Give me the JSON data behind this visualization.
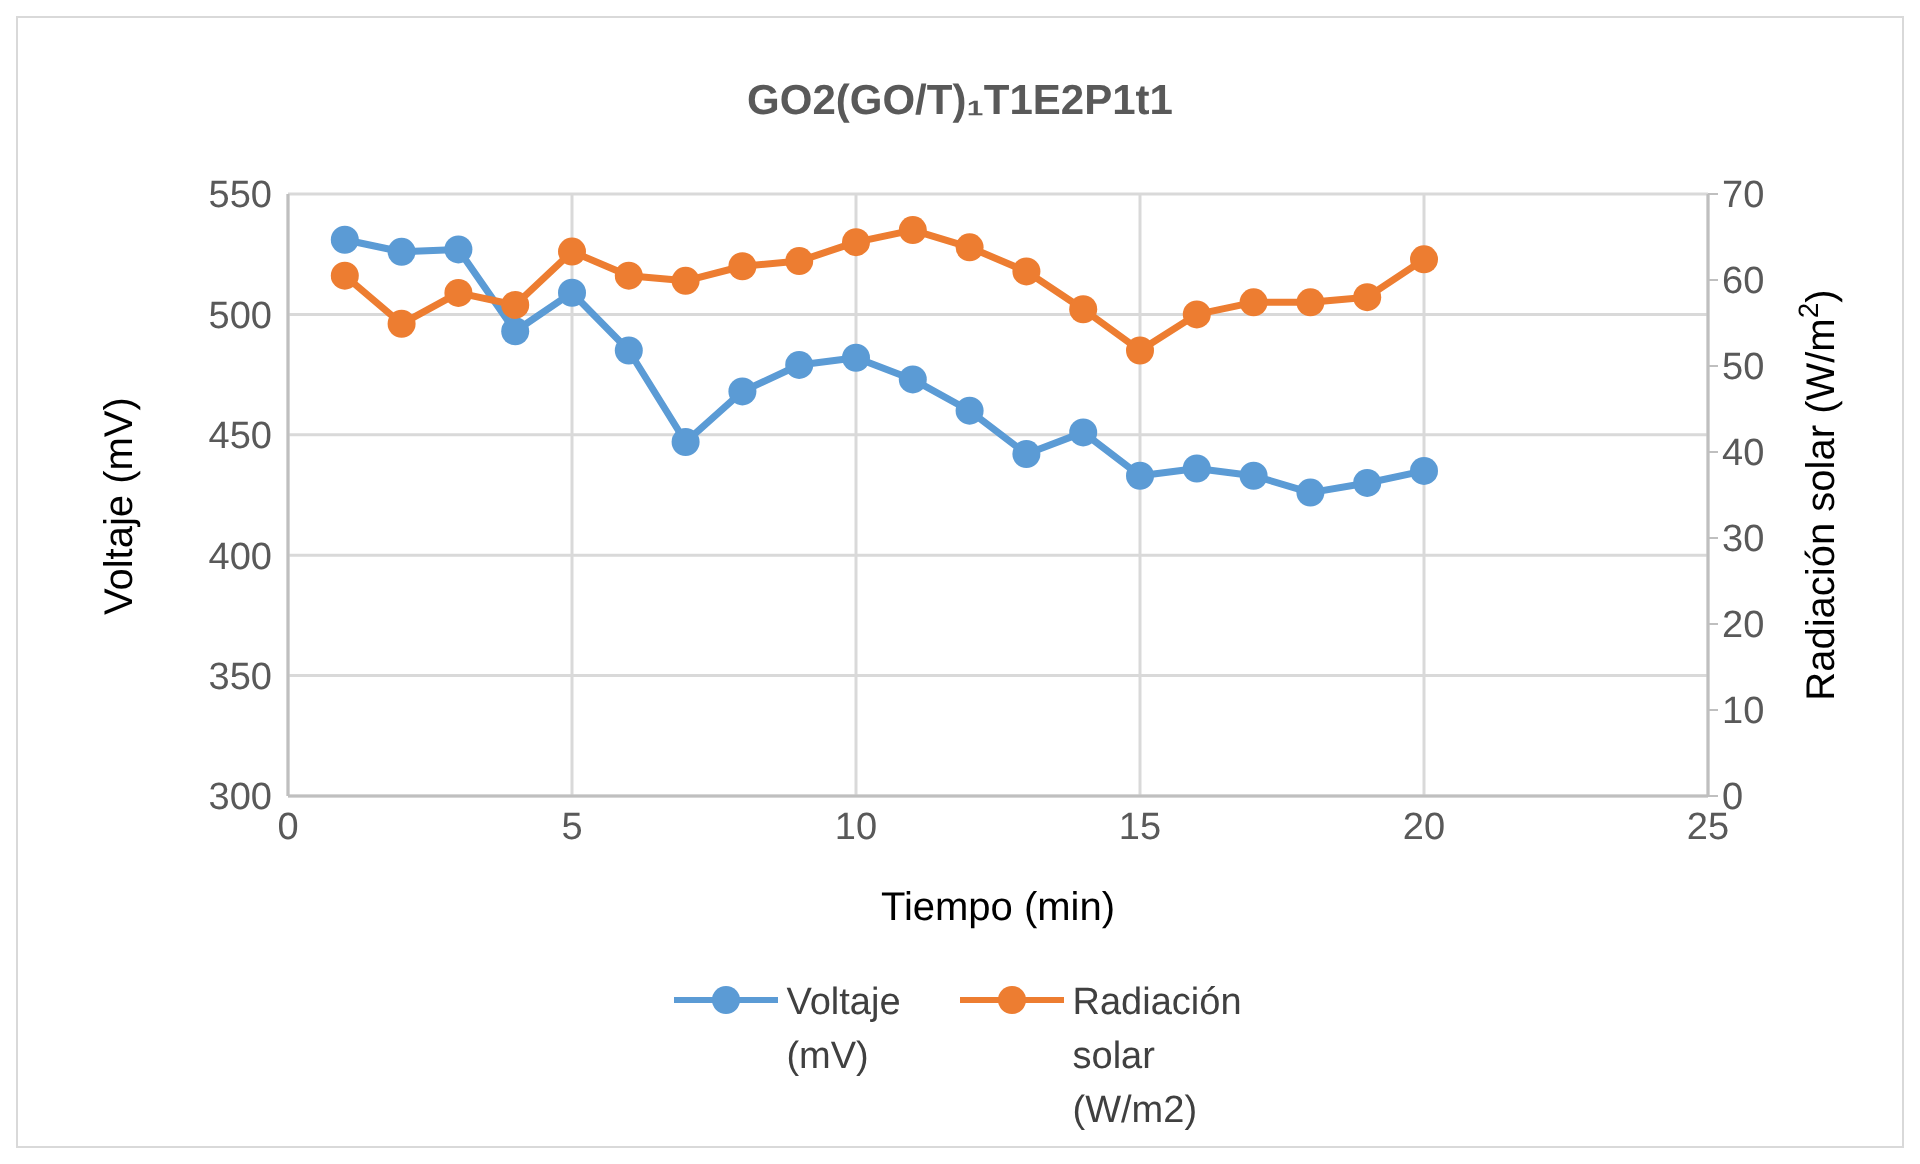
{
  "chart_data": {
    "type": "line",
    "title": "GO2(GO/T)₁T1E2P1t1",
    "xlabel": "Tiempo (min)",
    "ylabel": "Voltaje (mV)",
    "y2label": "Radiación solar  (W/m$^{2}$)",
    "x": [
      1,
      2,
      3,
      4,
      5,
      6,
      7,
      8,
      9,
      10,
      11,
      12,
      13,
      14,
      15,
      16,
      17,
      18,
      19,
      20
    ],
    "series": [
      {
        "name": "Voltaje (mV)",
        "color": "#5b9bd5",
        "values": [
          531,
          526,
          527,
          493,
          509,
          485,
          447,
          468,
          479,
          482,
          473,
          460,
          442,
          451,
          433,
          436,
          433,
          426,
          430,
          435
        ]
      },
      {
        "name": "Radiación solar (W/m2)",
        "color": "#ed7d31",
        "axis": "y2",
        "values": [
          60.5,
          54.9,
          58.5,
          57.1,
          63.3,
          60.5,
          59.9,
          61.6,
          62.2,
          64.4,
          65.8,
          63.8,
          61.0,
          56.6,
          51.8,
          56.0,
          57.4,
          57.4,
          58.0,
          62.4
        ]
      }
    ],
    "xlim": [
      0,
      25
    ],
    "xticks": [
      0,
      5,
      10,
      15,
      20,
      25
    ],
    "ylim": [
      300,
      550
    ],
    "yticks": [
      300,
      350,
      400,
      450,
      500,
      550
    ],
    "y2lim": [
      0,
      70
    ],
    "y2ticks": [
      0,
      10,
      20,
      30,
      40,
      50,
      60,
      70
    ],
    "grid": true,
    "legend": "bottom",
    "marker": "circle",
    "line_style": "solid"
  }
}
